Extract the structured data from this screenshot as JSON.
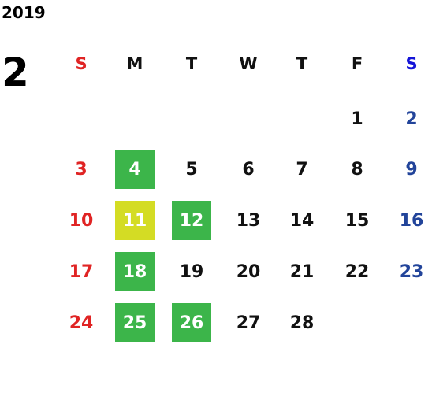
{
  "year": "2019",
  "month": "2",
  "weekdays": [
    "S",
    "M",
    "T",
    "W",
    "T",
    "F",
    "S"
  ],
  "weeks": [
    [
      null,
      null,
      null,
      null,
      null,
      {
        "day": 1
      },
      {
        "day": 2
      }
    ],
    [
      {
        "day": 3
      },
      {
        "day": 4,
        "highlight": "#3cb54a"
      },
      {
        "day": 5
      },
      {
        "day": 6
      },
      {
        "day": 7
      },
      {
        "day": 8
      },
      {
        "day": 9
      }
    ],
    [
      {
        "day": 10
      },
      {
        "day": 11,
        "highlight": "#d4dc24"
      },
      {
        "day": 12,
        "highlight": "#3cb54a"
      },
      {
        "day": 13
      },
      {
        "day": 14
      },
      {
        "day": 15
      },
      {
        "day": 16
      }
    ],
    [
      {
        "day": 17
      },
      {
        "day": 18,
        "highlight": "#3cb54a"
      },
      {
        "day": 19
      },
      {
        "day": 20
      },
      {
        "day": 21
      },
      {
        "day": 22
      },
      {
        "day": 23
      }
    ],
    [
      {
        "day": 24
      },
      {
        "day": 25,
        "highlight": "#3cb54a"
      },
      {
        "day": 26,
        "highlight": "#3cb54a"
      },
      {
        "day": 27
      },
      {
        "day": 28
      },
      null,
      null
    ]
  ]
}
